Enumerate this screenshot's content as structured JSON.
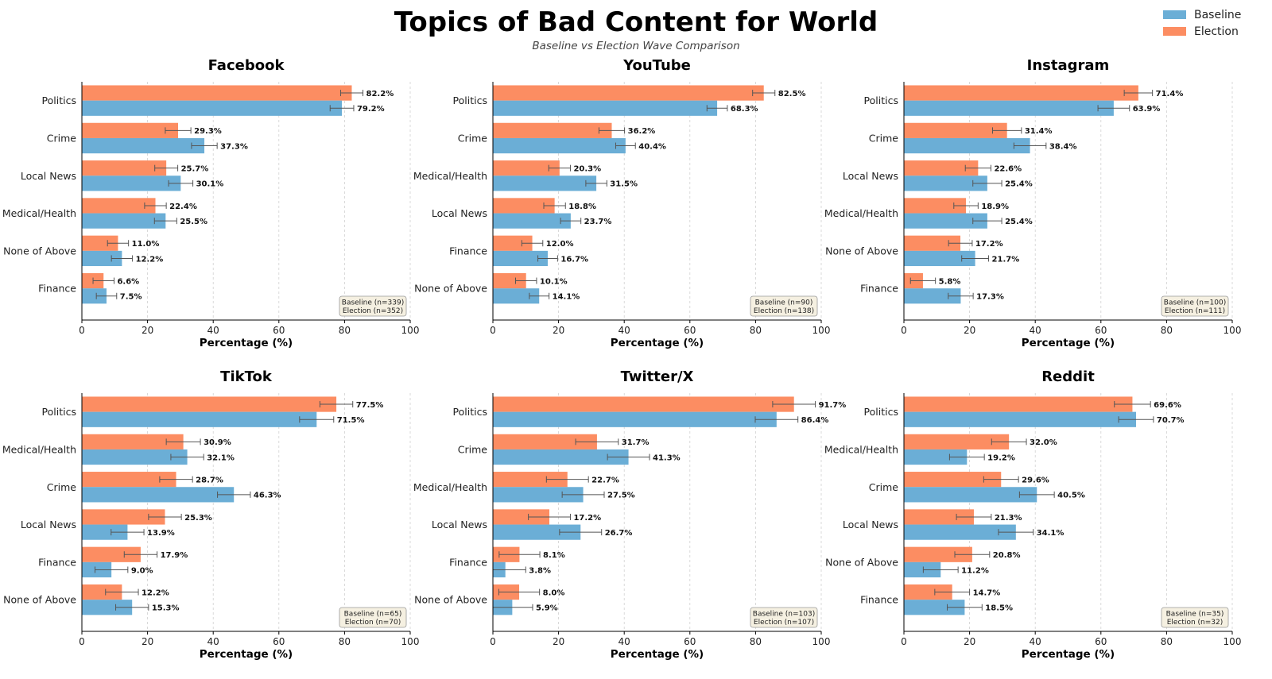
{
  "title": "Topics of Bad Content for World",
  "subtitle": "Baseline vs Election Wave Comparison",
  "legend": [
    {
      "name": "Baseline",
      "color": "#6baed6"
    },
    {
      "name": "Election",
      "color": "#fc8d62"
    }
  ],
  "colors": {
    "baseline": "#6baed6",
    "election": "#fc8d62",
    "errorbar": "#555555"
  },
  "chart_data": [
    {
      "type": "bar",
      "orientation": "horizontal",
      "title": "Facebook",
      "categories": [
        "Politics",
        "Crime",
        "Local News",
        "Medical/Health",
        "None of Above",
        "Finance"
      ],
      "series": [
        {
          "name": "Election",
          "values": [
            82.2,
            29.3,
            25.7,
            22.4,
            11.0,
            6.6
          ],
          "errors": [
            3.4,
            3.9,
            3.5,
            3.3,
            3.2,
            3.2
          ]
        },
        {
          "name": "Baseline",
          "values": [
            79.2,
            37.3,
            30.1,
            25.5,
            12.2,
            7.5
          ],
          "errors": [
            3.6,
            3.9,
            3.7,
            3.4,
            3.2,
            3.1
          ]
        }
      ],
      "xlabel": "Percentage (%)",
      "xlim": [
        0,
        100
      ],
      "xticks": [
        0,
        20,
        40,
        60,
        80,
        100
      ],
      "n_labels": [
        "Baseline (n=339)",
        "Election (n=352)"
      ],
      "grid": "x"
    },
    {
      "type": "bar",
      "orientation": "horizontal",
      "title": "YouTube",
      "categories": [
        "Politics",
        "Crime",
        "Medical/Health",
        "Local News",
        "Finance",
        "None of Above"
      ],
      "series": [
        {
          "name": "Election",
          "values": [
            82.5,
            36.2,
            20.3,
            18.8,
            12.0,
            10.1
          ],
          "errors": [
            3.4,
            3.9,
            3.3,
            3.3,
            3.2,
            3.2
          ]
        },
        {
          "name": "Baseline",
          "values": [
            68.3,
            40.4,
            31.5,
            23.7,
            16.7,
            14.1
          ],
          "errors": [
            3.1,
            3.0,
            3.2,
            3.1,
            3.0,
            3.0
          ]
        }
      ],
      "xlabel": "Percentage (%)",
      "xlim": [
        0,
        100
      ],
      "xticks": [
        0,
        20,
        40,
        60,
        80,
        100
      ],
      "n_labels": [
        "Baseline (n=90)",
        "Election (n=138)"
      ],
      "grid": "x"
    },
    {
      "type": "bar",
      "orientation": "horizontal",
      "title": "Instagram",
      "categories": [
        "Politics",
        "Crime",
        "Local News",
        "Medical/Health",
        "None of Above",
        "Finance"
      ],
      "series": [
        {
          "name": "Election",
          "values": [
            71.4,
            31.4,
            22.6,
            18.9,
            17.2,
            5.8
          ],
          "errors": [
            4.3,
            4.4,
            3.9,
            3.7,
            3.6,
            3.8
          ]
        },
        {
          "name": "Baseline",
          "values": [
            63.9,
            38.4,
            25.4,
            25.4,
            21.7,
            17.3
          ],
          "errors": [
            4.8,
            4.9,
            4.4,
            4.4,
            4.1,
            3.8
          ]
        }
      ],
      "xlabel": "Percentage (%)",
      "xlim": [
        0,
        100
      ],
      "xticks": [
        0,
        20,
        40,
        60,
        80,
        100
      ],
      "n_labels": [
        "Baseline (n=100)",
        "Election (n=111)"
      ],
      "grid": "x"
    },
    {
      "type": "bar",
      "orientation": "horizontal",
      "title": "TikTok",
      "categories": [
        "Politics",
        "Medical/Health",
        "Crime",
        "Local News",
        "Finance",
        "None of Above"
      ],
      "series": [
        {
          "name": "Election",
          "values": [
            77.5,
            30.9,
            28.7,
            25.3,
            17.9,
            12.2
          ],
          "errors": [
            5.0,
            5.2,
            5.0,
            5.0,
            5.0,
            5.0
          ]
        },
        {
          "name": "Baseline",
          "values": [
            71.5,
            32.1,
            46.3,
            13.9,
            9.0,
            15.3
          ],
          "errors": [
            5.2,
            5.0,
            5.0,
            5.0,
            5.0,
            5.0
          ]
        }
      ],
      "xlabel": "Percentage (%)",
      "xlim": [
        0,
        100
      ],
      "xticks": [
        0,
        20,
        40,
        60,
        80,
        100
      ],
      "n_labels": [
        "Baseline (n=65)",
        "Election (n=70)"
      ],
      "grid": "x"
    },
    {
      "type": "bar",
      "orientation": "horizontal",
      "title": "Twitter/X",
      "categories": [
        "Politics",
        "Crime",
        "Medical/Health",
        "Local News",
        "Finance",
        "None of Above"
      ],
      "series": [
        {
          "name": "Election",
          "values": [
            91.7,
            31.7,
            22.7,
            17.2,
            8.1,
            8.0
          ],
          "errors": [
            6.5,
            6.5,
            6.4,
            6.4,
            6.2,
            6.2
          ]
        },
        {
          "name": "Baseline",
          "values": [
            86.4,
            41.3,
            27.5,
            26.7,
            3.8,
            5.9
          ],
          "errors": [
            6.5,
            6.4,
            6.4,
            6.4,
            6.2,
            6.2
          ]
        }
      ],
      "xlabel": "Percentage (%)",
      "xlim": [
        0,
        100
      ],
      "xticks": [
        0,
        20,
        40,
        60,
        80,
        100
      ],
      "n_labels": [
        "Baseline (n=103)",
        "Election (n=107)"
      ],
      "grid": "x"
    },
    {
      "type": "bar",
      "orientation": "horizontal",
      "title": "Reddit",
      "categories": [
        "Politics",
        "Medical/Health",
        "Crime",
        "Local News",
        "None of Above",
        "Finance"
      ],
      "series": [
        {
          "name": "Election",
          "values": [
            69.6,
            32.0,
            29.6,
            21.3,
            20.8,
            14.7
          ],
          "errors": [
            5.5,
            5.3,
            5.3,
            5.3,
            5.3,
            5.3
          ]
        },
        {
          "name": "Baseline",
          "values": [
            70.7,
            19.2,
            40.5,
            34.1,
            11.2,
            18.5
          ],
          "errors": [
            5.3,
            5.3,
            5.3,
            5.3,
            5.3,
            5.3
          ]
        }
      ],
      "xlabel": "Percentage (%)",
      "xlim": [
        0,
        100
      ],
      "xticks": [
        0,
        20,
        40,
        60,
        80,
        100
      ],
      "n_labels": [
        "Baseline (n=35)",
        "Election (n=32)"
      ],
      "grid": "x"
    }
  ]
}
